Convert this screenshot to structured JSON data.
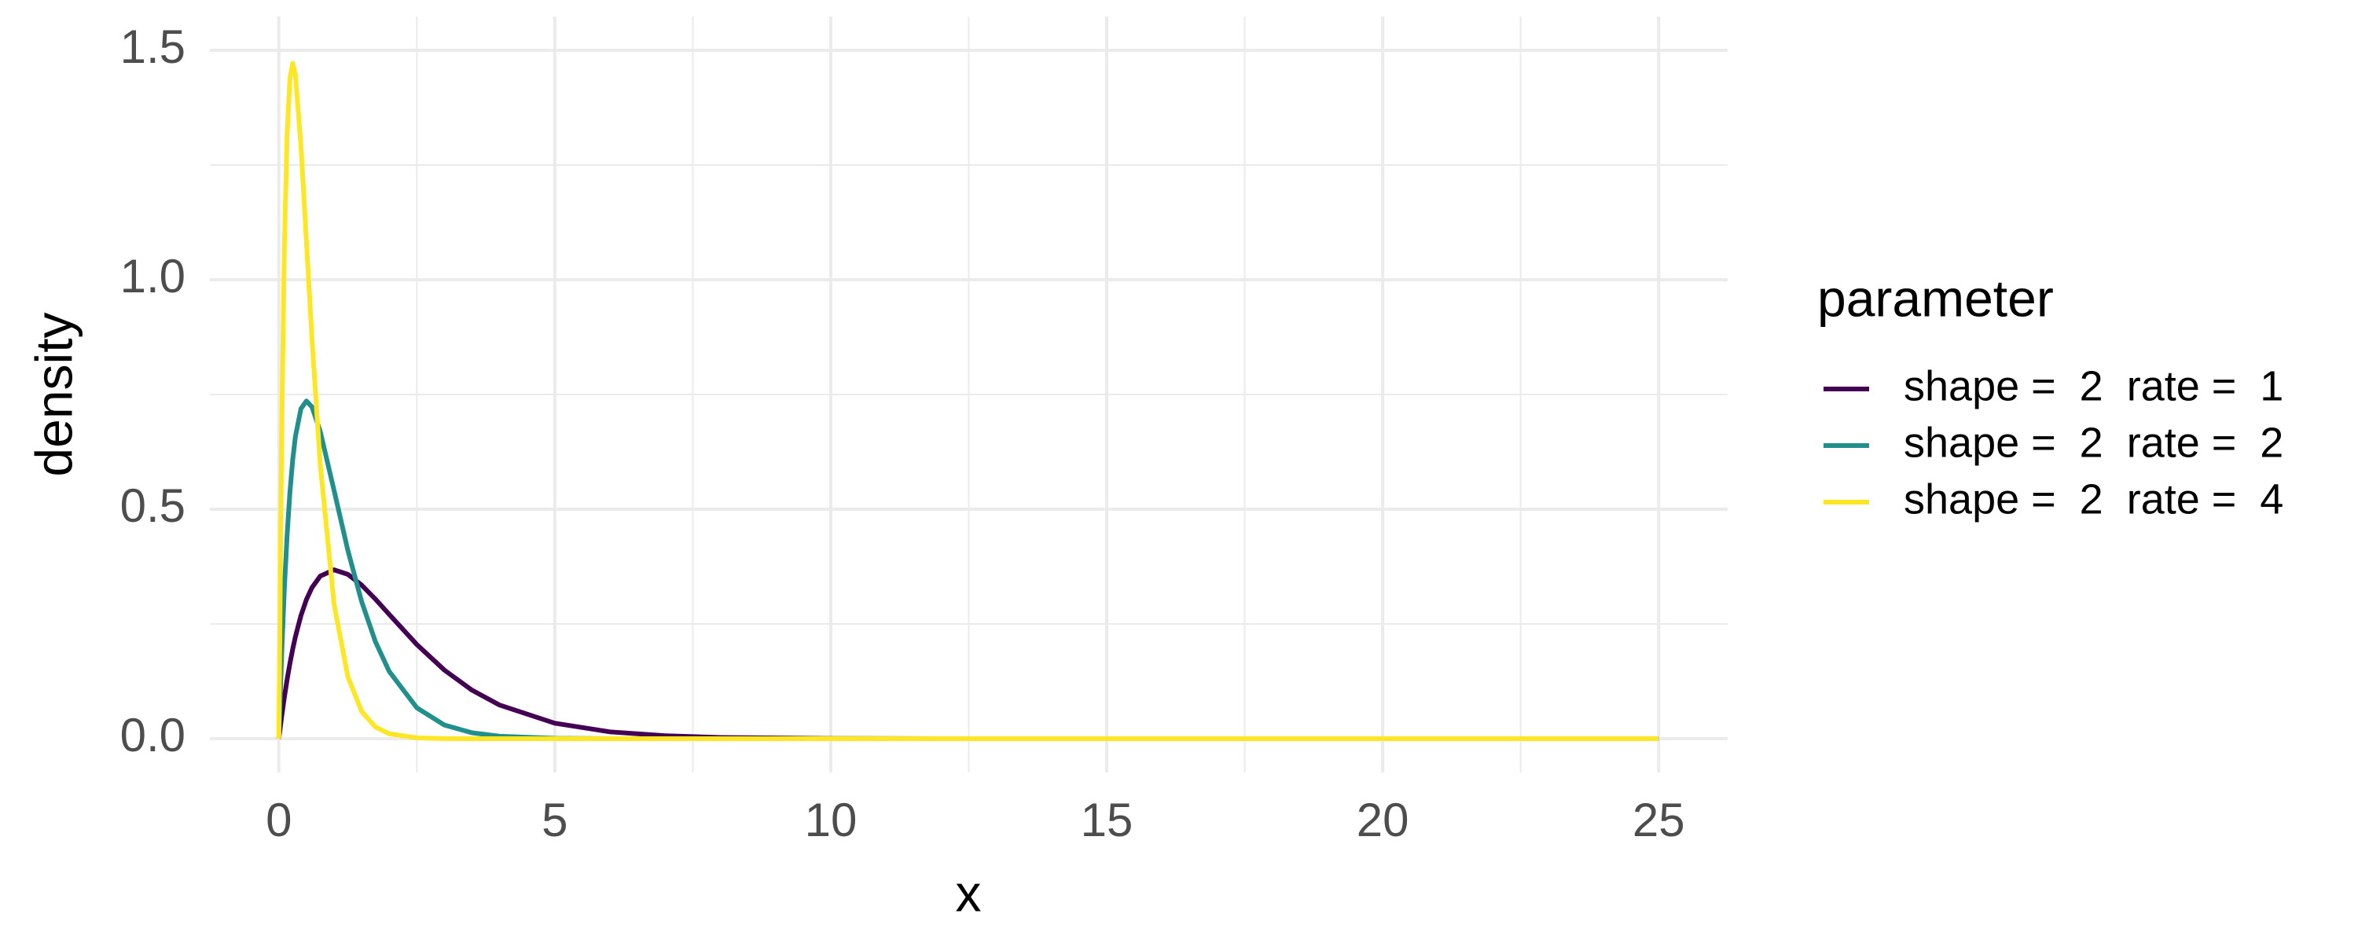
{
  "chart_data": {
    "type": "line",
    "x_label": "x",
    "y_label": "density",
    "legend_title": "parameter",
    "legend_position": "right",
    "x": [
      0,
      0.05,
      0.1,
      0.15,
      0.2,
      0.25,
      0.3,
      0.4,
      0.5,
      0.6,
      0.75,
      1,
      1.25,
      1.5,
      1.75,
      2,
      2.5,
      3,
      3.5,
      4,
      5,
      6,
      7,
      8,
      10,
      12,
      15,
      20,
      25
    ],
    "series": [
      {
        "name": "shape =  2  rate =  1",
        "color": "#440154",
        "values": [
          0,
          0.0476,
          0.0905,
          0.1291,
          0.1637,
          0.1947,
          0.2222,
          0.2681,
          0.3033,
          0.3293,
          0.3543,
          0.3679,
          0.3581,
          0.3347,
          0.3041,
          0.2707,
          0.2052,
          0.1494,
          0.1057,
          0.0733,
          0.0337,
          0.0149,
          0.0064,
          0.0027,
          0.0005,
          0.0001,
          0,
          0,
          0
        ]
      },
      {
        "name": "shape =  2  rate =  2",
        "color": "#21908C",
        "values": [
          0,
          0.181,
          0.3275,
          0.4445,
          0.5363,
          0.6065,
          0.6586,
          0.7189,
          0.7358,
          0.7229,
          0.6694,
          0.5413,
          0.4104,
          0.2987,
          0.2113,
          0.1465,
          0.0674,
          0.0297,
          0.0128,
          0.0054,
          0.0009,
          0.0001,
          0,
          0,
          0,
          0,
          0,
          0,
          0
        ]
      },
      {
        "name": "shape =  2  rate =  4",
        "color": "#FDE725",
        "values": [
          0,
          0.655,
          1.0725,
          1.3171,
          1.4378,
          1.4715,
          1.4458,
          1.2922,
          1.0827,
          0.8709,
          0.5974,
          0.2931,
          0.1348,
          0.0595,
          0.0255,
          0.0107,
          0.0018,
          0.0003,
          0,
          0,
          0,
          0,
          0,
          0,
          0,
          0,
          0,
          0,
          0
        ]
      }
    ],
    "xlim": [
      -1.25,
      26.25
    ],
    "xticks": [
      0,
      5,
      10,
      15,
      20,
      25
    ],
    "ylim": [
      -0.0736,
      1.5736
    ],
    "yticks": [
      {
        "value": 0,
        "label": "0.0"
      },
      0.5,
      {
        "value": 1,
        "label": "1.0"
      },
      1.5
    ],
    "grid": true,
    "minor_grid": true
  }
}
